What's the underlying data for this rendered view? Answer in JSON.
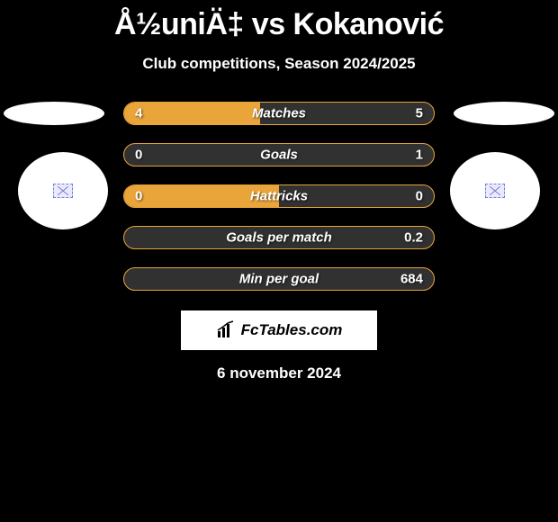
{
  "title": "Å½uniÄ‡ vs Kokanović",
  "subtitle": "Club competitions, Season 2024/2025",
  "colors": {
    "background": "#000000",
    "bar_border": "#e9a43a",
    "bar_fill": "#e9a43a",
    "bar_track": "#313131",
    "text": "#ffffff",
    "brand_bg": "#ffffff",
    "brand_text": "#000000"
  },
  "left_badge": {
    "shape": "ellipse",
    "icon": "flag-placeholder"
  },
  "right_badge": {
    "shape": "ellipse",
    "icon": "flag-placeholder"
  },
  "stats": [
    {
      "label": "Matches",
      "left_value": "4",
      "right_value": "5",
      "left_pct": 44,
      "right_pct": 0
    },
    {
      "label": "Goals",
      "left_value": "0",
      "right_value": "1",
      "left_pct": 0,
      "right_pct": 0
    },
    {
      "label": "Hattricks",
      "left_value": "0",
      "right_value": "0",
      "left_pct": 50,
      "right_pct": 0
    },
    {
      "label": "Goals per match",
      "left_value": "",
      "right_value": "0.2",
      "left_pct": 0,
      "right_pct": 0
    },
    {
      "label": "Min per goal",
      "left_value": "",
      "right_value": "684",
      "left_pct": 0,
      "right_pct": 0
    }
  ],
  "brand": "FcTables.com",
  "date": "6 november 2024"
}
